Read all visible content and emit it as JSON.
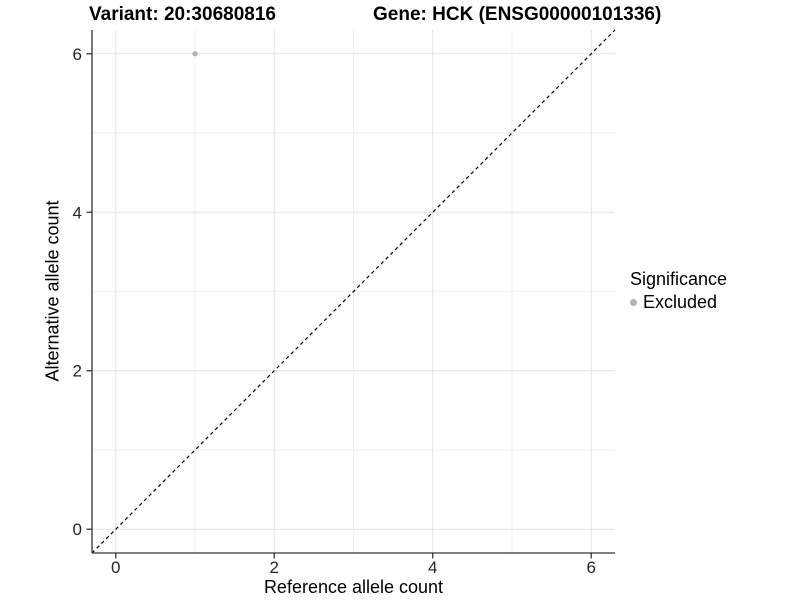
{
  "titles": {
    "variant": "Variant: 20:30680816",
    "gene": "Gene: HCK (ENSG00000101336)"
  },
  "chart_data": {
    "type": "scatter",
    "title_left": "Variant: 20:30680816",
    "title_right": "Gene: HCK (ENSG00000101336)",
    "xlabel": "Reference allele count",
    "ylabel": "Alternative allele count",
    "xlim": [
      -0.3,
      6.3
    ],
    "ylim": [
      -0.3,
      6.3
    ],
    "x_ticks": [
      0,
      2,
      4,
      6
    ],
    "y_ticks": [
      0,
      2,
      4,
      6
    ],
    "x_grid_major": [
      0,
      2,
      4,
      6
    ],
    "x_grid_minor": [
      1,
      3,
      5
    ],
    "y_grid_major": [
      0,
      2,
      4,
      6
    ],
    "y_grid_minor": [
      1,
      3,
      5
    ],
    "grid": true,
    "series": [
      {
        "name": "Excluded",
        "color": "#b3b3b3",
        "points": [
          {
            "x": 1,
            "y": 6
          }
        ]
      }
    ],
    "reference_line": {
      "type": "identity",
      "style": "dashed",
      "color": "#000000"
    },
    "legend": {
      "title": "Significance",
      "position": "right",
      "entries": [
        {
          "label": "Excluded",
          "color": "#b3b3b3"
        }
      ]
    },
    "colors": {
      "axis_line": "#333333",
      "tick_mark": "#333333",
      "tick_label": "#262626",
      "grid_major": "#e2e2e2",
      "grid_minor": "#efefef",
      "panel_background": "#ffffff"
    }
  }
}
